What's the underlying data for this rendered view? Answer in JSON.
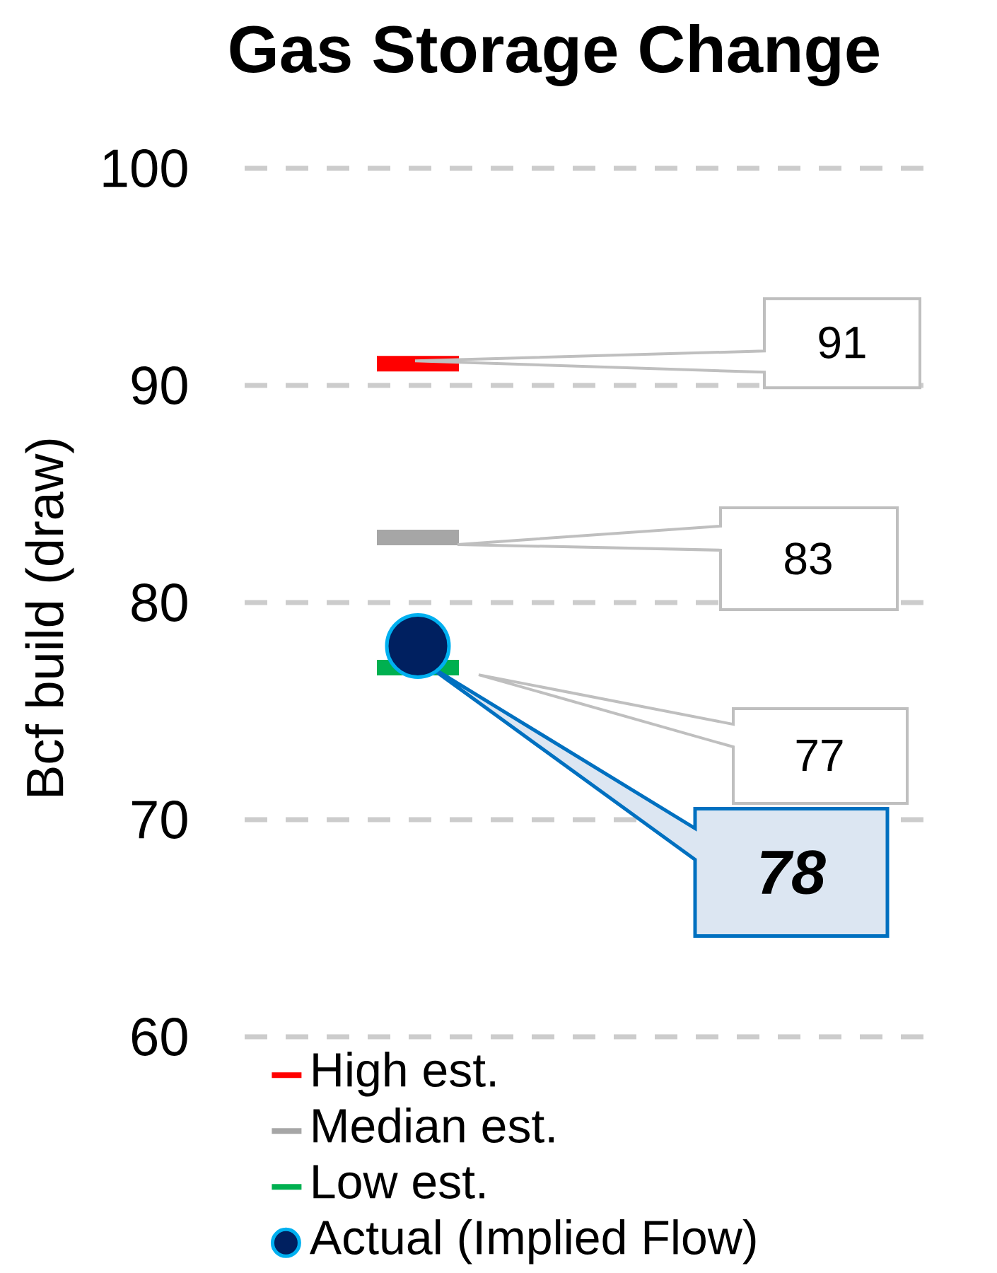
{
  "chart_data": {
    "type": "scatter",
    "title": "Gas Storage Change",
    "ylabel": "Bcf build (draw)",
    "categories": [
      null,
      null
    ],
    "series": [
      {
        "name": "Actual (Implied Flow)",
        "color": "#002060",
        "values": [
          78,
          null
        ],
        "marker": "circle"
      }
    ],
    "ref_lines": [
      {
        "axis": "y",
        "value": 91,
        "label": "High est.",
        "color": "#ff0000"
      },
      {
        "axis": "y",
        "value": 83,
        "label": "Median est.",
        "color": "#a6a6a6"
      },
      {
        "axis": "y",
        "value": 77,
        "label": "Low est.",
        "color": "#00b050"
      }
    ],
    "annotations": [
      "91",
      "83",
      "77",
      "78"
    ],
    "ylim": [
      60,
      100
    ],
    "yticks": [
      60,
      70,
      80,
      90,
      100
    ],
    "grid": "y",
    "legend": "bottom",
    "tick_labels": "y"
  }
}
